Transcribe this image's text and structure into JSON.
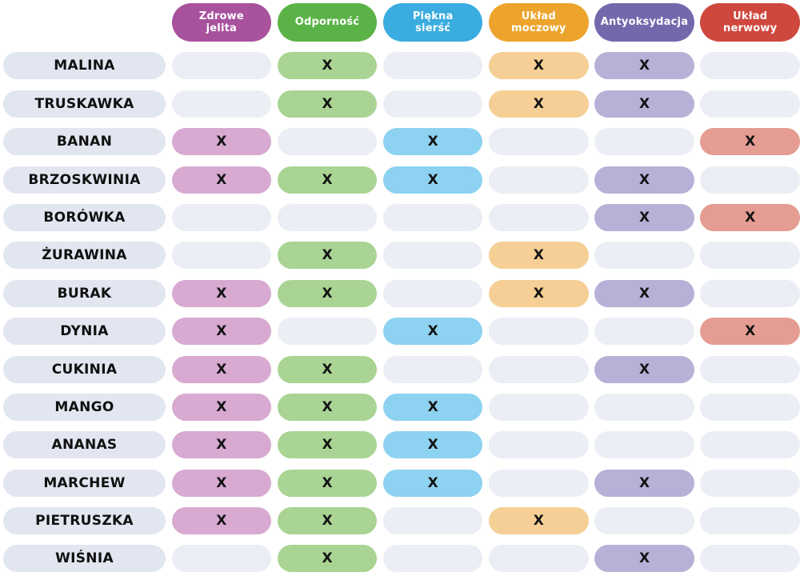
{
  "mark_symbol": "X",
  "styles": {
    "background": "#ffffff",
    "empty_cell_color": "#eceef5",
    "row_label_color": "#e2e6f0",
    "mark_text_color": "#141414",
    "header_text_color": "#ffffff"
  },
  "chart_data": {
    "type": "table",
    "title": "",
    "columns": [
      {
        "label": "Zdrowe\njelita",
        "header_color": "#a8529e",
        "cell_color": "#d8a9d1"
      },
      {
        "label": "Odporność",
        "header_color": "#5bb348",
        "cell_color": "#a9d493"
      },
      {
        "label": "Piękna\nsierść",
        "header_color": "#3aacdf",
        "cell_color": "#8dd2f0"
      },
      {
        "label": "Układ\nmoczowy",
        "header_color": "#eca42c",
        "cell_color": "#f5cf95"
      },
      {
        "label": "Antyoksydacja",
        "header_color": "#7468ad",
        "cell_color": "#b9b0d8"
      },
      {
        "label": "Układ\nnerwowy",
        "header_color": "#cf483e",
        "cell_color": "#e59c92"
      }
    ],
    "rows": [
      {
        "label": "MALINA",
        "marks": [
          0,
          1,
          0,
          1,
          1,
          0
        ]
      },
      {
        "label": "TRUSKAWKA",
        "marks": [
          0,
          1,
          0,
          1,
          1,
          0
        ]
      },
      {
        "label": "BANAN",
        "marks": [
          1,
          0,
          1,
          0,
          0,
          1
        ]
      },
      {
        "label": "BRZOSKWINIA",
        "marks": [
          1,
          1,
          1,
          0,
          1,
          0
        ]
      },
      {
        "label": "BORÓWKA",
        "marks": [
          0,
          0,
          0,
          0,
          1,
          1
        ]
      },
      {
        "label": "ŻURAWINA",
        "marks": [
          0,
          1,
          0,
          1,
          0,
          0
        ]
      },
      {
        "label": "BURAK",
        "marks": [
          1,
          1,
          0,
          1,
          1,
          0
        ]
      },
      {
        "label": "DYNIA",
        "marks": [
          1,
          0,
          1,
          0,
          0,
          1
        ]
      },
      {
        "label": "CUKINIA",
        "marks": [
          1,
          1,
          0,
          0,
          1,
          0
        ]
      },
      {
        "label": "MANGO",
        "marks": [
          1,
          1,
          1,
          0,
          0,
          0
        ]
      },
      {
        "label": "ANANAS",
        "marks": [
          1,
          1,
          1,
          0,
          0,
          0
        ]
      },
      {
        "label": "MARCHEW",
        "marks": [
          1,
          1,
          1,
          0,
          1,
          0
        ]
      },
      {
        "label": "PIETRUSZKA",
        "marks": [
          1,
          1,
          0,
          1,
          0,
          0
        ]
      },
      {
        "label": "WIŚNIA",
        "marks": [
          0,
          1,
          0,
          0,
          1,
          0
        ]
      }
    ]
  }
}
